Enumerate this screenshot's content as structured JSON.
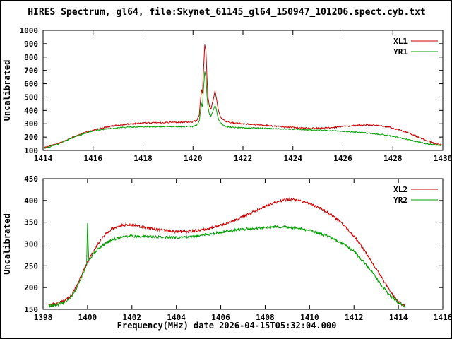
{
  "title": "HIRES Spectrum, gl64, file:Skynet_61145_gl64_150947_101206.spect.cyb.txt",
  "xlabel": "Frequency(MHz) date 2026-04-15T05:32:04.000",
  "background_color": "#ffffff",
  "axis_color": "#000000",
  "chart_data": [
    {
      "type": "line",
      "ylabel": "Uncalibrated",
      "xlim": [
        1414,
        1430
      ],
      "ylim": [
        100,
        1000
      ],
      "xticks": [
        1414,
        1416,
        1418,
        1420,
        1422,
        1424,
        1426,
        1428,
        1430
      ],
      "yticks": [
        100,
        200,
        300,
        400,
        500,
        600,
        700,
        800,
        900,
        1000
      ],
      "grid": false,
      "legend_position": "top-right",
      "series": [
        {
          "name": "XL1",
          "color": "#cc0000",
          "noise": 5,
          "points": [
            [
              1414.05,
              122
            ],
            [
              1414.3,
              132
            ],
            [
              1414.6,
              152
            ],
            [
              1415.0,
              185
            ],
            [
              1415.4,
              215
            ],
            [
              1415.8,
              242
            ],
            [
              1416.2,
              262
            ],
            [
              1416.6,
              278
            ],
            [
              1417.0,
              290
            ],
            [
              1417.5,
              299
            ],
            [
              1418.0,
              305
            ],
            [
              1418.5,
              308
            ],
            [
              1419.0,
              310
            ],
            [
              1419.5,
              312
            ],
            [
              1420.0,
              315
            ],
            [
              1420.15,
              325
            ],
            [
              1420.25,
              360
            ],
            [
              1420.3,
              480
            ],
            [
              1420.35,
              560
            ],
            [
              1420.38,
              530
            ],
            [
              1420.42,
              700
            ],
            [
              1420.47,
              890
            ],
            [
              1420.52,
              840
            ],
            [
              1420.56,
              640
            ],
            [
              1420.6,
              500
            ],
            [
              1420.66,
              430
            ],
            [
              1420.72,
              410
            ],
            [
              1420.8,
              470
            ],
            [
              1420.88,
              550
            ],
            [
              1420.93,
              500
            ],
            [
              1421.0,
              420
            ],
            [
              1421.08,
              360
            ],
            [
              1421.2,
              330
            ],
            [
              1421.35,
              315
            ],
            [
              1421.6,
              308
            ],
            [
              1422.0,
              300
            ],
            [
              1422.5,
              292
            ],
            [
              1423.0,
              286
            ],
            [
              1423.5,
              279
            ],
            [
              1424.0,
              272
            ],
            [
              1424.5,
              267
            ],
            [
              1425.0,
              267
            ],
            [
              1425.5,
              271
            ],
            [
              1426.0,
              279
            ],
            [
              1426.5,
              287
            ],
            [
              1427.0,
              290
            ],
            [
              1427.4,
              287
            ],
            [
              1427.8,
              277
            ],
            [
              1428.2,
              258
            ],
            [
              1428.6,
              232
            ],
            [
              1429.0,
              202
            ],
            [
              1429.4,
              172
            ],
            [
              1429.7,
              152
            ],
            [
              1429.95,
              143
            ]
          ]
        },
        {
          "name": "YR1",
          "color": "#00a000",
          "noise": 4,
          "points": [
            [
              1414.05,
              118
            ],
            [
              1414.3,
              128
            ],
            [
              1414.6,
              148
            ],
            [
              1415.0,
              180
            ],
            [
              1415.4,
              210
            ],
            [
              1415.8,
              236
            ],
            [
              1416.2,
              252
            ],
            [
              1416.6,
              263
            ],
            [
              1417.0,
              270
            ],
            [
              1417.5,
              275
            ],
            [
              1418.0,
              277
            ],
            [
              1418.5,
              278
            ],
            [
              1419.0,
              278
            ],
            [
              1419.5,
              279
            ],
            [
              1420.0,
              280
            ],
            [
              1420.15,
              290
            ],
            [
              1420.25,
              320
            ],
            [
              1420.3,
              400
            ],
            [
              1420.35,
              450
            ],
            [
              1420.38,
              430
            ],
            [
              1420.42,
              560
            ],
            [
              1420.47,
              690
            ],
            [
              1420.52,
              650
            ],
            [
              1420.56,
              510
            ],
            [
              1420.6,
              420
            ],
            [
              1420.66,
              370
            ],
            [
              1420.72,
              360
            ],
            [
              1420.8,
              395
            ],
            [
              1420.88,
              440
            ],
            [
              1420.93,
              410
            ],
            [
              1421.0,
              350
            ],
            [
              1421.08,
              310
            ],
            [
              1421.2,
              290
            ],
            [
              1421.35,
              278
            ],
            [
              1421.6,
              273
            ],
            [
              1422.0,
              270
            ],
            [
              1422.5,
              268
            ],
            [
              1423.0,
              265
            ],
            [
              1423.5,
              262
            ],
            [
              1424.0,
              259
            ],
            [
              1424.5,
              256
            ],
            [
              1425.0,
              252
            ],
            [
              1425.5,
              248
            ],
            [
              1426.0,
              243
            ],
            [
              1426.5,
              237
            ],
            [
              1427.0,
              230
            ],
            [
              1427.5,
              221
            ],
            [
              1428.0,
              207
            ],
            [
              1428.4,
              190
            ],
            [
              1428.8,
              172
            ],
            [
              1429.2,
              156
            ],
            [
              1429.6,
              143
            ],
            [
              1429.95,
              137
            ]
          ]
        }
      ]
    },
    {
      "type": "line",
      "ylabel": "Uncalibrated",
      "xlim": [
        1398,
        1416
      ],
      "ylim": [
        150,
        450
      ],
      "xticks": [
        1398,
        1400,
        1402,
        1404,
        1406,
        1408,
        1410,
        1412,
        1414,
        1416
      ],
      "yticks": [
        150,
        200,
        250,
        300,
        350,
        400,
        450
      ],
      "grid": false,
      "legend_position": "top-right",
      "series": [
        {
          "name": "XL2",
          "color": "#cc0000",
          "noise": 3,
          "points": [
            [
              1398.25,
              160
            ],
            [
              1398.6,
              163
            ],
            [
              1399.0,
              170
            ],
            [
              1399.3,
              184
            ],
            [
              1399.6,
              213
            ],
            [
              1399.9,
              248
            ],
            [
              1400.2,
              278
            ],
            [
              1400.5,
              302
            ],
            [
              1400.8,
              322
            ],
            [
              1401.1,
              335
            ],
            [
              1401.5,
              343
            ],
            [
              1401.9,
              345
            ],
            [
              1402.3,
              341
            ],
            [
              1402.8,
              336
            ],
            [
              1403.3,
              332
            ],
            [
              1403.8,
              329
            ],
            [
              1404.3,
              328
            ],
            [
              1404.8,
              330
            ],
            [
              1405.3,
              334
            ],
            [
              1405.8,
              340
            ],
            [
              1406.3,
              348
            ],
            [
              1406.8,
              358
            ],
            [
              1407.3,
              370
            ],
            [
              1407.8,
              382
            ],
            [
              1408.3,
              393
            ],
            [
              1408.7,
              399
            ],
            [
              1409.0,
              402
            ],
            [
              1409.4,
              401
            ],
            [
              1409.8,
              396
            ],
            [
              1410.2,
              389
            ],
            [
              1410.6,
              379
            ],
            [
              1411.0,
              366
            ],
            [
              1411.4,
              350
            ],
            [
              1411.8,
              330
            ],
            [
              1412.2,
              305
            ],
            [
              1412.6,
              275
            ],
            [
              1413.0,
              243
            ],
            [
              1413.4,
              210
            ],
            [
              1413.8,
              180
            ],
            [
              1414.1,
              163
            ],
            [
              1414.3,
              157
            ]
          ]
        },
        {
          "name": "YR2",
          "color": "#00a000",
          "noise": 3,
          "points": [
            [
              1398.25,
              157
            ],
            [
              1398.6,
              160
            ],
            [
              1399.0,
              167
            ],
            [
              1399.3,
              180
            ],
            [
              1399.6,
              208
            ],
            [
              1399.9,
              245
            ],
            [
              1399.96,
              256
            ],
            [
              1400.0,
              345
            ],
            [
              1400.06,
              262
            ],
            [
              1400.3,
              280
            ],
            [
              1400.6,
              294
            ],
            [
              1400.9,
              304
            ],
            [
              1401.2,
              311
            ],
            [
              1401.6,
              316
            ],
            [
              1402.0,
              318
            ],
            [
              1402.5,
              317
            ],
            [
              1403.0,
              316
            ],
            [
              1403.5,
              315
            ],
            [
              1404.0,
              315
            ],
            [
              1404.5,
              316
            ],
            [
              1405.0,
              319
            ],
            [
              1405.5,
              323
            ],
            [
              1406.0,
              327
            ],
            [
              1406.5,
              331
            ],
            [
              1407.0,
              334
            ],
            [
              1407.5,
              336
            ],
            [
              1408.0,
              338
            ],
            [
              1408.5,
              340
            ],
            [
              1409.0,
              339
            ],
            [
              1409.5,
              336
            ],
            [
              1410.0,
              331
            ],
            [
              1410.5,
              324
            ],
            [
              1411.0,
              314
            ],
            [
              1411.5,
              301
            ],
            [
              1412.0,
              283
            ],
            [
              1412.4,
              261
            ],
            [
              1412.8,
              236
            ],
            [
              1413.2,
              208
            ],
            [
              1413.6,
              183
            ],
            [
              1414.0,
              165
            ],
            [
              1414.3,
              158
            ]
          ]
        }
      ]
    }
  ]
}
